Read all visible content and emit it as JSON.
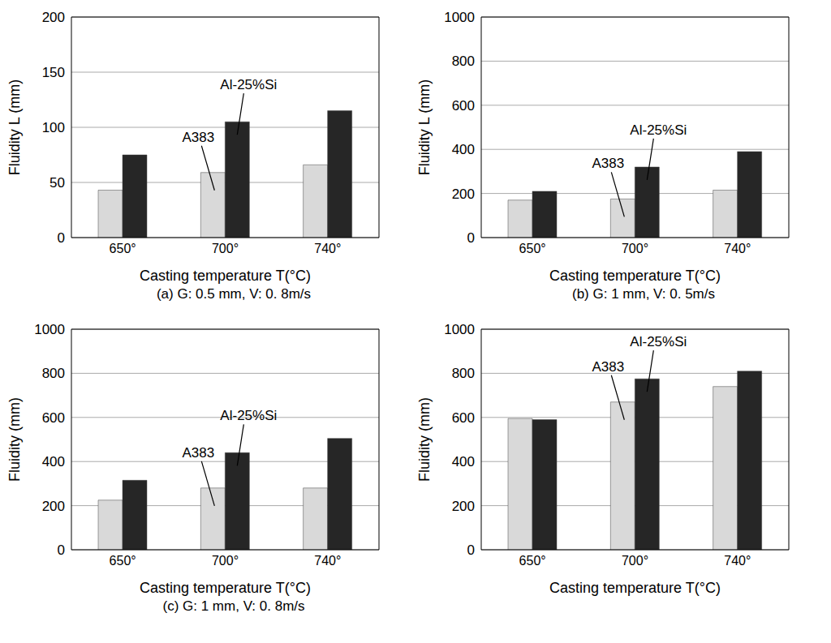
{
  "chart_data": [
    {
      "type": "bar",
      "title": "(a) G: 0.5 mm, V: 0. 8m/s",
      "y_label": "Fluidity L (mm)",
      "x_label": "Casting temperature  T(°C)",
      "categories": [
        "650°",
        "700°",
        "740°"
      ],
      "series": [
        {
          "name": "A383",
          "color": "#d9d9d9",
          "values": [
            43,
            59,
            66
          ]
        },
        {
          "name": "Al-25%Si",
          "color": "#262626",
          "values": [
            75,
            105,
            115
          ]
        }
      ],
      "ylim": [
        0,
        200
      ],
      "yticks": [
        0,
        50,
        100,
        150,
        200
      ],
      "grid": true
    },
    {
      "type": "bar",
      "title": "(b) G: 1 mm, V: 0. 5m/s",
      "y_label": "Fluidity L (mm)",
      "x_label": "Casting temperature  T(°C)",
      "categories": [
        "650°",
        "700°",
        "740°"
      ],
      "series": [
        {
          "name": "A383",
          "color": "#d9d9d9",
          "values": [
            170,
            175,
            215
          ]
        },
        {
          "name": "Al-25%Si",
          "color": "#262626",
          "values": [
            210,
            320,
            390
          ]
        }
      ],
      "ylim": [
        0,
        1000
      ],
      "yticks": [
        0,
        200,
        400,
        600,
        800,
        1000
      ],
      "grid": true
    },
    {
      "type": "bar",
      "title": "(c) G: 1 mm, V: 0. 8m/s",
      "y_label": "Fluidity  (mm)",
      "x_label": "Casting temperature  T(°C)",
      "categories": [
        "650°",
        "700°",
        "740°"
      ],
      "series": [
        {
          "name": "A383",
          "color": "#d9d9d9",
          "values": [
            225,
            280,
            280
          ]
        },
        {
          "name": "Al-25%Si",
          "color": "#262626",
          "values": [
            315,
            440,
            505
          ]
        }
      ],
      "ylim": [
        0,
        1000
      ],
      "yticks": [
        0,
        200,
        400,
        600,
        800,
        1000
      ],
      "grid": true
    },
    {
      "type": "bar",
      "y_label": "Fluidity  (mm)",
      "x_label": "Casting temperature  T(°C)",
      "categories": [
        "650°",
        "700°",
        "740°"
      ],
      "series": [
        {
          "name": "A383",
          "color": "#d9d9d9",
          "values": [
            595,
            670,
            740
          ]
        },
        {
          "name": "Al-25%Si",
          "color": "#262626",
          "values": [
            590,
            775,
            810
          ]
        }
      ],
      "ylim": [
        0,
        1000
      ],
      "yticks": [
        0,
        200,
        400,
        600,
        800,
        1000
      ],
      "grid": true
    }
  ]
}
